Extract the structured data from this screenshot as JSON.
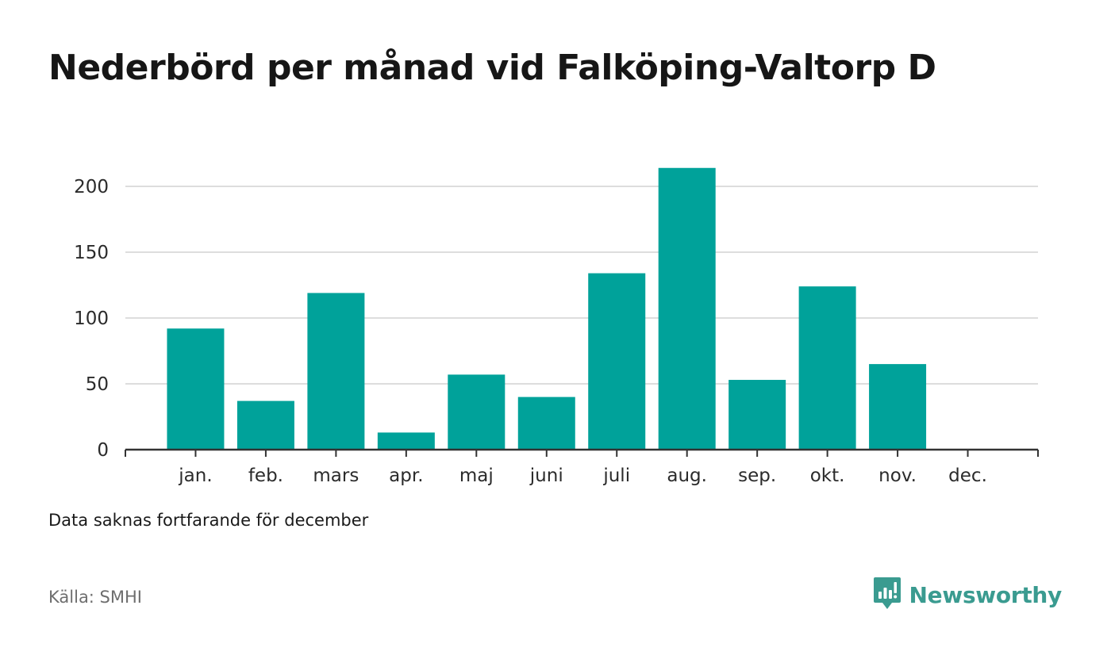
{
  "title": "Nederbörd per månad vid Falköping-Valtorp D",
  "note": "Data saknas fortfarande för december",
  "source": "Källa: SMHI",
  "brand": {
    "name": "Newsworthy",
    "logo_icon": "newsworthy-logo-icon",
    "color": "#3a9b90"
  },
  "colors": {
    "bar": "#00a29a",
    "grid": "#dddddd",
    "axis": "#333333"
  },
  "chart_data": {
    "type": "bar",
    "title": "Nederbörd per månad vid Falköping-Valtorp D",
    "xlabel": "",
    "ylabel": "",
    "categories": [
      "jan.",
      "feb.",
      "mars",
      "apr.",
      "maj",
      "juni",
      "juli",
      "aug.",
      "sep.",
      "okt.",
      "nov.",
      "dec."
    ],
    "values": [
      92,
      37,
      119,
      13,
      57,
      40,
      134,
      214,
      53,
      124,
      65,
      null
    ],
    "ylim": [
      0,
      220
    ],
    "yticks": [
      0,
      50,
      100,
      150,
      200
    ],
    "grid": true,
    "legend": "none"
  }
}
